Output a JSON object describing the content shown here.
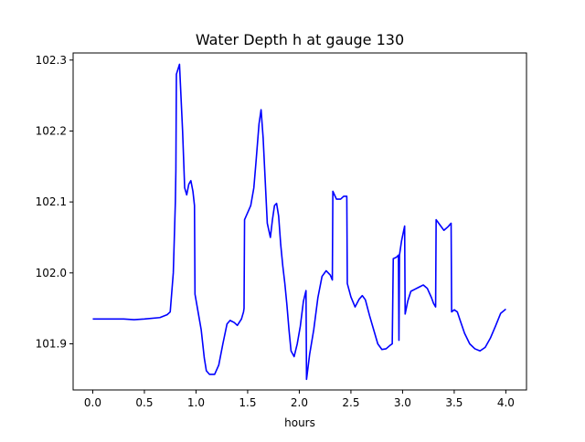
{
  "chart_data": {
    "type": "line",
    "title": "Water Depth h at gauge 130",
    "xlabel": "hours",
    "ylabel": "",
    "xlim": [
      -0.19,
      4.2
    ],
    "ylim": [
      101.835,
      102.31
    ],
    "x_ticks": [
      0.0,
      0.5,
      1.0,
      1.5,
      2.0,
      2.5,
      3.0,
      3.5,
      4.0
    ],
    "x_tick_labels": [
      "0.0",
      "0.5",
      "1.0",
      "1.5",
      "2.0",
      "2.5",
      "3.0",
      "3.5",
      "4.0"
    ],
    "y_ticks": [
      101.9,
      102.0,
      102.1,
      102.2,
      102.3
    ],
    "y_tick_labels": [
      "101.9",
      "102.0",
      "102.1",
      "102.2",
      "102.3"
    ],
    "grid": false,
    "series_color": "#0000ff",
    "series": [
      {
        "name": "",
        "color": "#0000ff",
        "points": [
          [
            0.0,
            101.935
          ],
          [
            0.3,
            101.935
          ],
          [
            0.4,
            101.934
          ],
          [
            0.5,
            101.935
          ],
          [
            0.65,
            101.937
          ],
          [
            0.72,
            101.941
          ],
          [
            0.75,
            101.945
          ],
          [
            0.78,
            102.0
          ],
          [
            0.8,
            102.1
          ],
          [
            0.805,
            102.145
          ],
          [
            0.81,
            102.28
          ],
          [
            0.84,
            102.294
          ],
          [
            0.87,
            102.2
          ],
          [
            0.89,
            102.12
          ],
          [
            0.91,
            102.11
          ],
          [
            0.93,
            102.125
          ],
          [
            0.95,
            102.13
          ],
          [
            0.97,
            102.115
          ],
          [
            0.985,
            102.095
          ],
          [
            0.99,
            101.97
          ],
          [
            1.02,
            101.945
          ],
          [
            1.05,
            101.92
          ],
          [
            1.08,
            101.88
          ],
          [
            1.1,
            101.862
          ],
          [
            1.13,
            101.857
          ],
          [
            1.18,
            101.857
          ],
          [
            1.22,
            101.87
          ],
          [
            1.26,
            101.9
          ],
          [
            1.3,
            101.928
          ],
          [
            1.33,
            101.933
          ],
          [
            1.37,
            101.93
          ],
          [
            1.4,
            101.926
          ],
          [
            1.44,
            101.935
          ],
          [
            1.46,
            101.945
          ],
          [
            1.465,
            101.95
          ],
          [
            1.47,
            102.075
          ],
          [
            1.5,
            102.085
          ],
          [
            1.53,
            102.095
          ],
          [
            1.56,
            102.12
          ],
          [
            1.58,
            102.155
          ],
          [
            1.61,
            102.21
          ],
          [
            1.63,
            102.23
          ],
          [
            1.65,
            102.19
          ],
          [
            1.67,
            102.13
          ],
          [
            1.69,
            102.07
          ],
          [
            1.72,
            102.05
          ],
          [
            1.74,
            102.075
          ],
          [
            1.76,
            102.095
          ],
          [
            1.78,
            102.098
          ],
          [
            1.8,
            102.08
          ],
          [
            1.82,
            102.04
          ],
          [
            1.84,
            102.01
          ],
          [
            1.86,
            101.985
          ],
          [
            1.88,
            101.955
          ],
          [
            1.9,
            101.92
          ],
          [
            1.92,
            101.89
          ],
          [
            1.95,
            101.882
          ],
          [
            1.98,
            101.9
          ],
          [
            2.01,
            101.925
          ],
          [
            2.04,
            101.96
          ],
          [
            2.065,
            101.975
          ],
          [
            2.07,
            101.85
          ],
          [
            2.1,
            101.885
          ],
          [
            2.14,
            101.92
          ],
          [
            2.18,
            101.965
          ],
          [
            2.22,
            101.995
          ],
          [
            2.26,
            102.003
          ],
          [
            2.3,
            101.997
          ],
          [
            2.32,
            101.99
          ],
          [
            2.325,
            102.115
          ],
          [
            2.36,
            102.104
          ],
          [
            2.4,
            102.104
          ],
          [
            2.43,
            102.108
          ],
          [
            2.46,
            102.108
          ],
          [
            2.465,
            101.985
          ],
          [
            2.5,
            101.966
          ],
          [
            2.54,
            101.952
          ],
          [
            2.58,
            101.963
          ],
          [
            2.61,
            101.968
          ],
          [
            2.64,
            101.962
          ],
          [
            2.68,
            101.94
          ],
          [
            2.72,
            101.92
          ],
          [
            2.76,
            101.9
          ],
          [
            2.8,
            101.892
          ],
          [
            2.84,
            101.893
          ],
          [
            2.88,
            101.898
          ],
          [
            2.9,
            101.9
          ],
          [
            2.91,
            102.02
          ],
          [
            2.94,
            102.022
          ],
          [
            2.96,
            102.025
          ],
          [
            2.965,
            101.905
          ],
          [
            2.97,
            102.025
          ],
          [
            2.99,
            102.045
          ],
          [
            3.02,
            102.066
          ],
          [
            3.025,
            101.942
          ],
          [
            3.05,
            101.96
          ],
          [
            3.08,
            101.974
          ],
          [
            3.12,
            101.977
          ],
          [
            3.16,
            101.98
          ],
          [
            3.2,
            101.983
          ],
          [
            3.24,
            101.978
          ],
          [
            3.28,
            101.965
          ],
          [
            3.3,
            101.957
          ],
          [
            3.32,
            101.952
          ],
          [
            3.325,
            102.075
          ],
          [
            3.36,
            102.068
          ],
          [
            3.4,
            102.06
          ],
          [
            3.44,
            102.065
          ],
          [
            3.47,
            102.07
          ],
          [
            3.475,
            101.945
          ],
          [
            3.5,
            101.948
          ],
          [
            3.53,
            101.945
          ],
          [
            3.56,
            101.932
          ],
          [
            3.6,
            101.915
          ],
          [
            3.65,
            101.9
          ],
          [
            3.7,
            101.893
          ],
          [
            3.75,
            101.89
          ],
          [
            3.8,
            101.895
          ],
          [
            3.85,
            101.908
          ],
          [
            3.9,
            101.925
          ],
          [
            3.95,
            101.943
          ],
          [
            4.0,
            101.949
          ]
        ]
      }
    ]
  }
}
